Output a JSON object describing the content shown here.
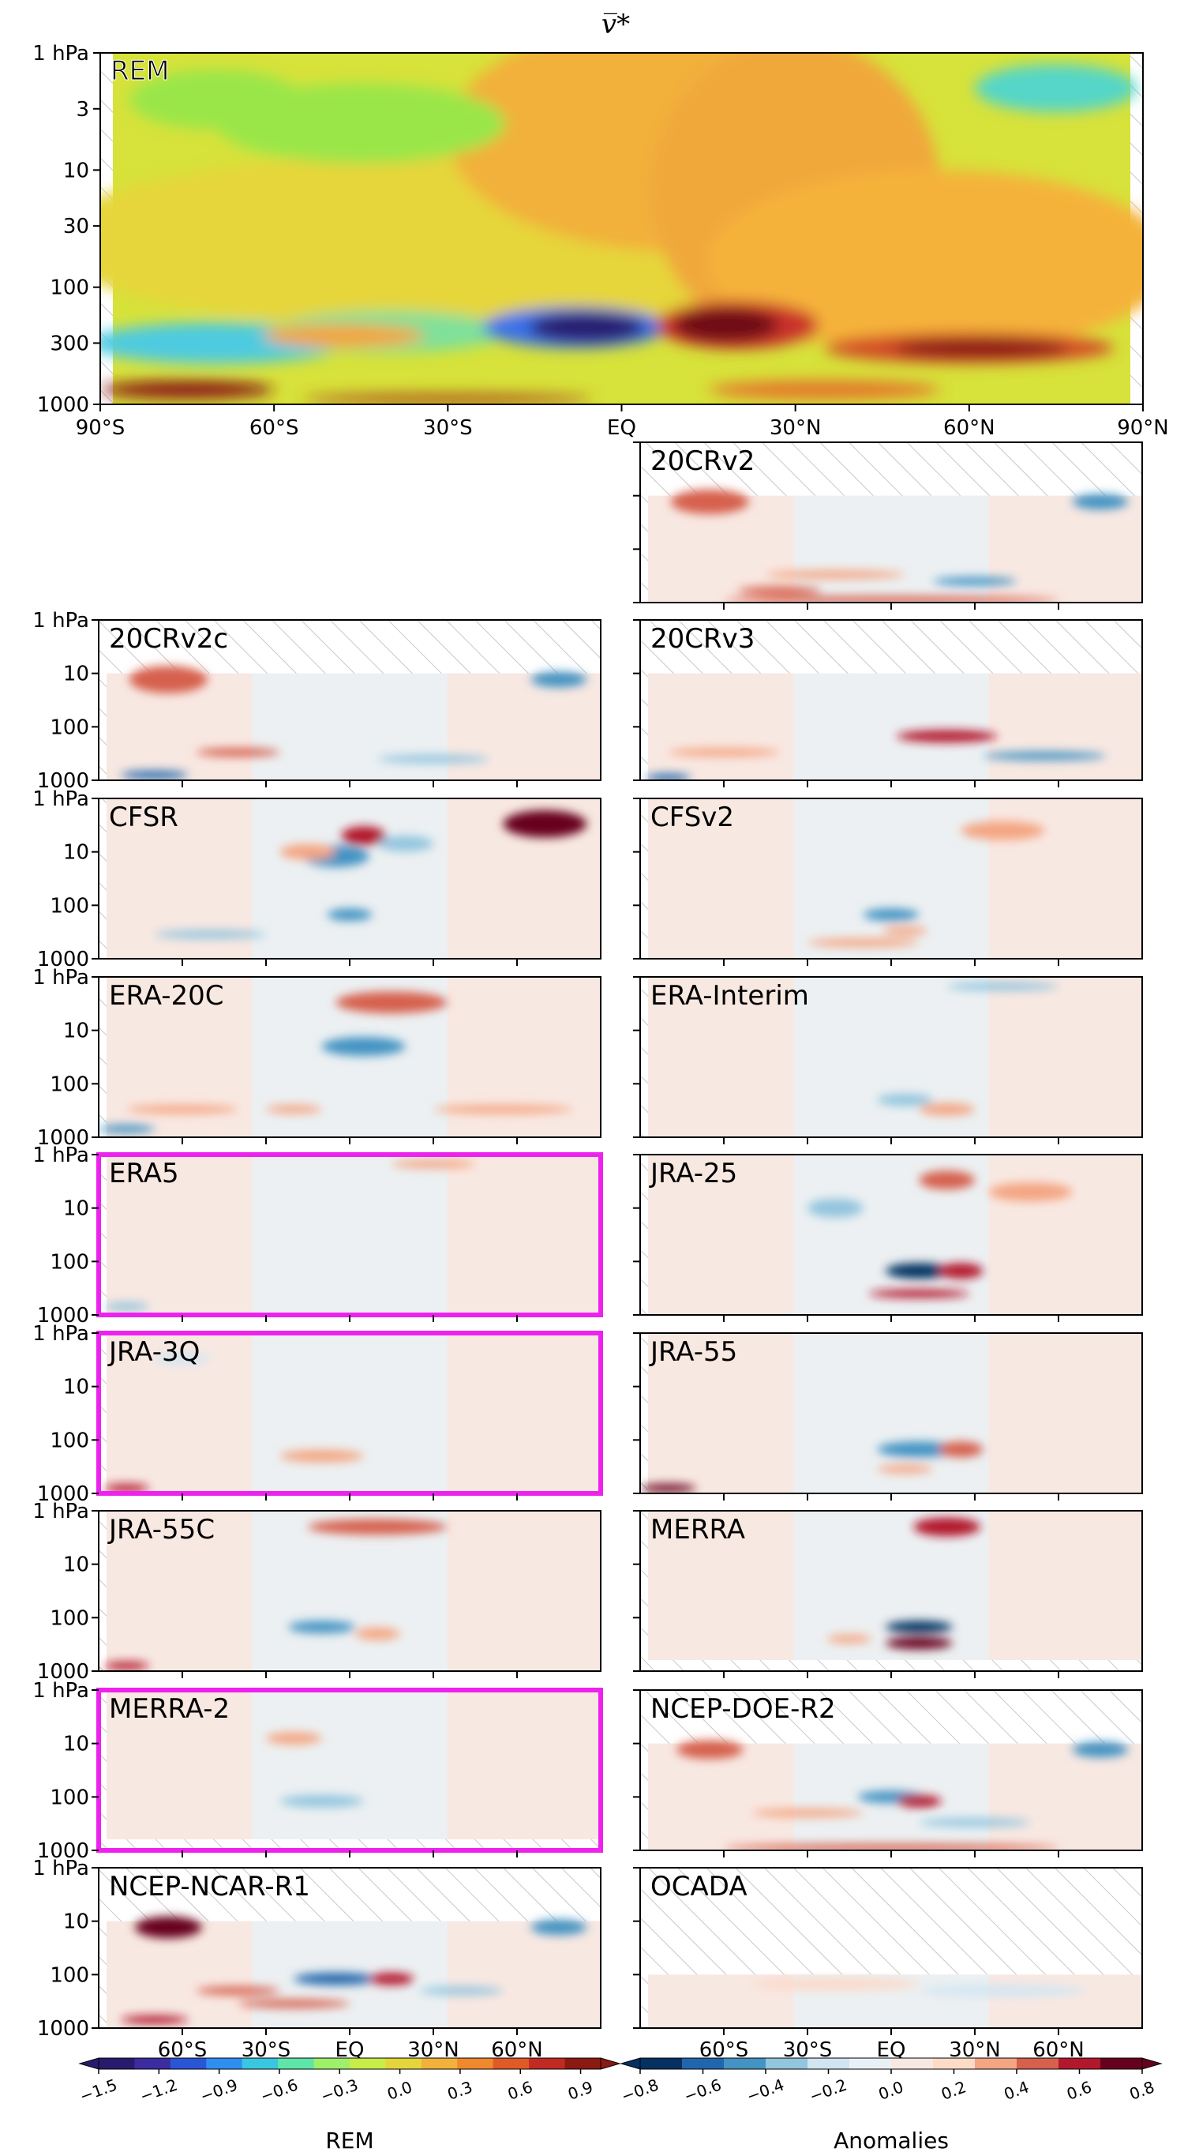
{
  "figure": {
    "title": "v̅*",
    "highlight_color": "#ee22ee"
  },
  "chart_data": {
    "type": "heatmap",
    "variable": "v̅*",
    "x_axis": {
      "ticks": [
        -90,
        -60,
        -30,
        0,
        30,
        60,
        90
      ],
      "tick_labels": [
        "90°S",
        "60°S",
        "30°S",
        "EQ",
        "30°N",
        "60°N",
        "90°N"
      ],
      "small_panel_tick_labels": [
        "60°S",
        "30°S",
        "EQ",
        "30°N",
        "60°N"
      ]
    },
    "y_axis": {
      "scale": "log",
      "reversed": true,
      "range": [
        1,
        1000
      ],
      "rem_ticks": [
        1,
        3,
        10,
        30,
        100,
        300,
        1000
      ],
      "rem_tick_labels": [
        "1 hPa",
        "3",
        "10",
        "30",
        "100",
        "300",
        "1000"
      ],
      "small_ticks": [
        1,
        10,
        100,
        1000
      ],
      "small_tick_labels": [
        "1 hPa",
        "10",
        "100",
        "1000"
      ]
    },
    "main_panel": {
      "name": "REM",
      "label_color": "#ee22ee",
      "colormap": "jet",
      "colorbar_label": "REM",
      "colorbar_range": [
        -1.5,
        1.0
      ],
      "colorbar_ticks": [
        -1.5,
        -1.2,
        -0.9,
        -0.6,
        -0.3,
        0.0,
        0.3,
        0.6,
        0.9
      ],
      "colorbar_tick_labels": [
        "−1.5",
        "−1.2",
        "−0.9",
        "−0.6",
        "−0.3",
        "0.0",
        "0.3",
        "0.6",
        "0.9"
      ]
    },
    "anomaly_colorbar": {
      "label": "Anomalies",
      "colormap": "RdBu_r",
      "range": [
        -0.8,
        0.8
      ],
      "ticks": [
        -0.8,
        -0.6,
        -0.4,
        -0.2,
        0.0,
        0.2,
        0.4,
        0.6,
        0.8
      ],
      "tick_labels": [
        "−0.8",
        "−0.6",
        "−0.4",
        "−0.2",
        "0.0",
        "0.2",
        "0.4",
        "0.6",
        "0.8"
      ]
    },
    "panels": [
      {
        "name": "20CRv2",
        "top_hpa": 10,
        "highlighted": false
      },
      {
        "name": "20CRv2c",
        "top_hpa": 10,
        "highlighted": false
      },
      {
        "name": "20CRv3",
        "top_hpa": 10,
        "highlighted": false
      },
      {
        "name": "CFSR",
        "top_hpa": 1,
        "highlighted": false
      },
      {
        "name": "CFSv2",
        "top_hpa": 1,
        "highlighted": false
      },
      {
        "name": "ERA-20C",
        "top_hpa": 1,
        "highlighted": false
      },
      {
        "name": "ERA-Interim",
        "top_hpa": 1,
        "highlighted": false
      },
      {
        "name": "ERA5",
        "top_hpa": 1,
        "highlighted": true
      },
      {
        "name": "JRA-25",
        "top_hpa": 1,
        "highlighted": false
      },
      {
        "name": "JRA-3Q",
        "top_hpa": 1,
        "highlighted": true
      },
      {
        "name": "JRA-55",
        "top_hpa": 1,
        "highlighted": false
      },
      {
        "name": "JRA-55C",
        "top_hpa": 1,
        "highlighted": false
      },
      {
        "name": "MERRA",
        "top_hpa": 1,
        "highlighted": false
      },
      {
        "name": "MERRA-2",
        "top_hpa": 1,
        "highlighted": true
      },
      {
        "name": "NCEP-DOE-R2",
        "top_hpa": 10,
        "highlighted": false
      },
      {
        "name": "NCEP-NCAR-R1",
        "top_hpa": 10,
        "highlighted": false
      },
      {
        "name": "OCADA",
        "top_hpa": 100,
        "highlighted": false
      }
    ]
  }
}
